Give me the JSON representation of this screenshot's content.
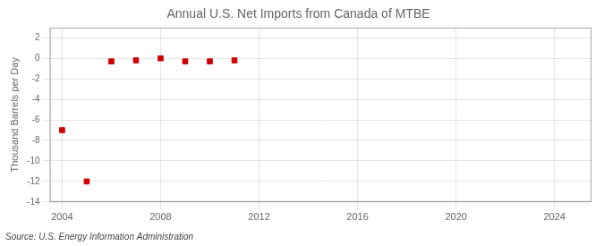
{
  "chart_data": {
    "type": "scatter",
    "title": "Annual U.S. Net Imports from Canada of MTBE",
    "ylabel": "Thousand Barrels per Day",
    "annotation": "Source: U.S. Energy Information Administration",
    "x": [
      2004,
      2005,
      2006,
      2007,
      2008,
      2009,
      2010,
      2011
    ],
    "values": [
      -7.0,
      -12.0,
      -0.3,
      -0.2,
      0.0,
      -0.3,
      -0.3,
      -0.2
    ],
    "color": "#cc0000",
    "marker": "square",
    "xlim": [
      2003.5,
      2025.5
    ],
    "ylim": [
      -14,
      3
    ],
    "xticks": [
      2004,
      2008,
      2012,
      2016,
      2020,
      2024
    ],
    "yticks": [
      2,
      0,
      -2,
      -4,
      -6,
      -8,
      -10,
      -12,
      -14
    ],
    "grid": true
  }
}
